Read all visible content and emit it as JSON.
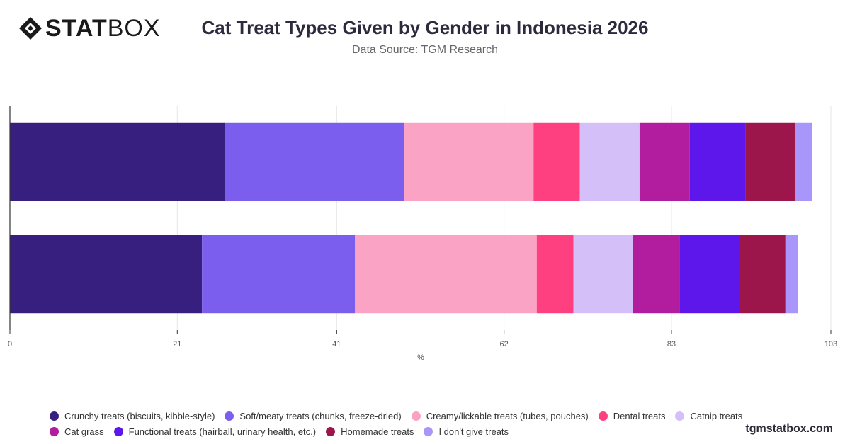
{
  "brand": {
    "logo_stat": "STAT",
    "logo_box": "BOX",
    "watermark": "tgmstatbox.com"
  },
  "header": {
    "title": "Cat Treat Types Given by Gender in Indonesia 2026",
    "subtitle": "Data Source: TGM Research"
  },
  "chart_data": {
    "type": "bar",
    "orientation": "horizontal",
    "stacked": true,
    "title": "Cat Treat Types Given by Gender in Indonesia 2026",
    "xlabel": "%",
    "ylabel": "",
    "xlim": [
      0,
      103
    ],
    "x_ticks": [
      "0",
      "21",
      "41",
      "62",
      "83",
      "103"
    ],
    "categories": [
      "",
      ""
    ],
    "grid": true,
    "legend_position": "bottom",
    "series": [
      {
        "name": "Crunchy treats (biscuits, kibble-style)",
        "color": "#371f80",
        "values": [
          27.0,
          24.1
        ]
      },
      {
        "name": "Soft/meaty treats (chunks, freeze-dried)",
        "color": "#7b5eed",
        "values": [
          22.5,
          19.2
        ]
      },
      {
        "name": "Creamy/lickable treats (tubes, pouches)",
        "color": "#fba3c4",
        "values": [
          16.2,
          22.8
        ]
      },
      {
        "name": "Dental treats",
        "color": "#ff4080",
        "values": [
          5.8,
          4.6
        ]
      },
      {
        "name": "Catnip treats",
        "color": "#d5bff8",
        "values": [
          7.5,
          7.5
        ]
      },
      {
        "name": "Cat grass",
        "color": "#b21c9e",
        "values": [
          6.3,
          5.8
        ]
      },
      {
        "name": "Functional treats (hairball, urinary health, etc.)",
        "color": "#5e17eb",
        "values": [
          7.0,
          7.5
        ]
      },
      {
        "name": "Homemade treats",
        "color": "#9c164c",
        "values": [
          6.2,
          5.8
        ]
      },
      {
        "name": "I don't give treats",
        "color": "#a996fb",
        "values": [
          2.1,
          1.6
        ]
      }
    ]
  }
}
